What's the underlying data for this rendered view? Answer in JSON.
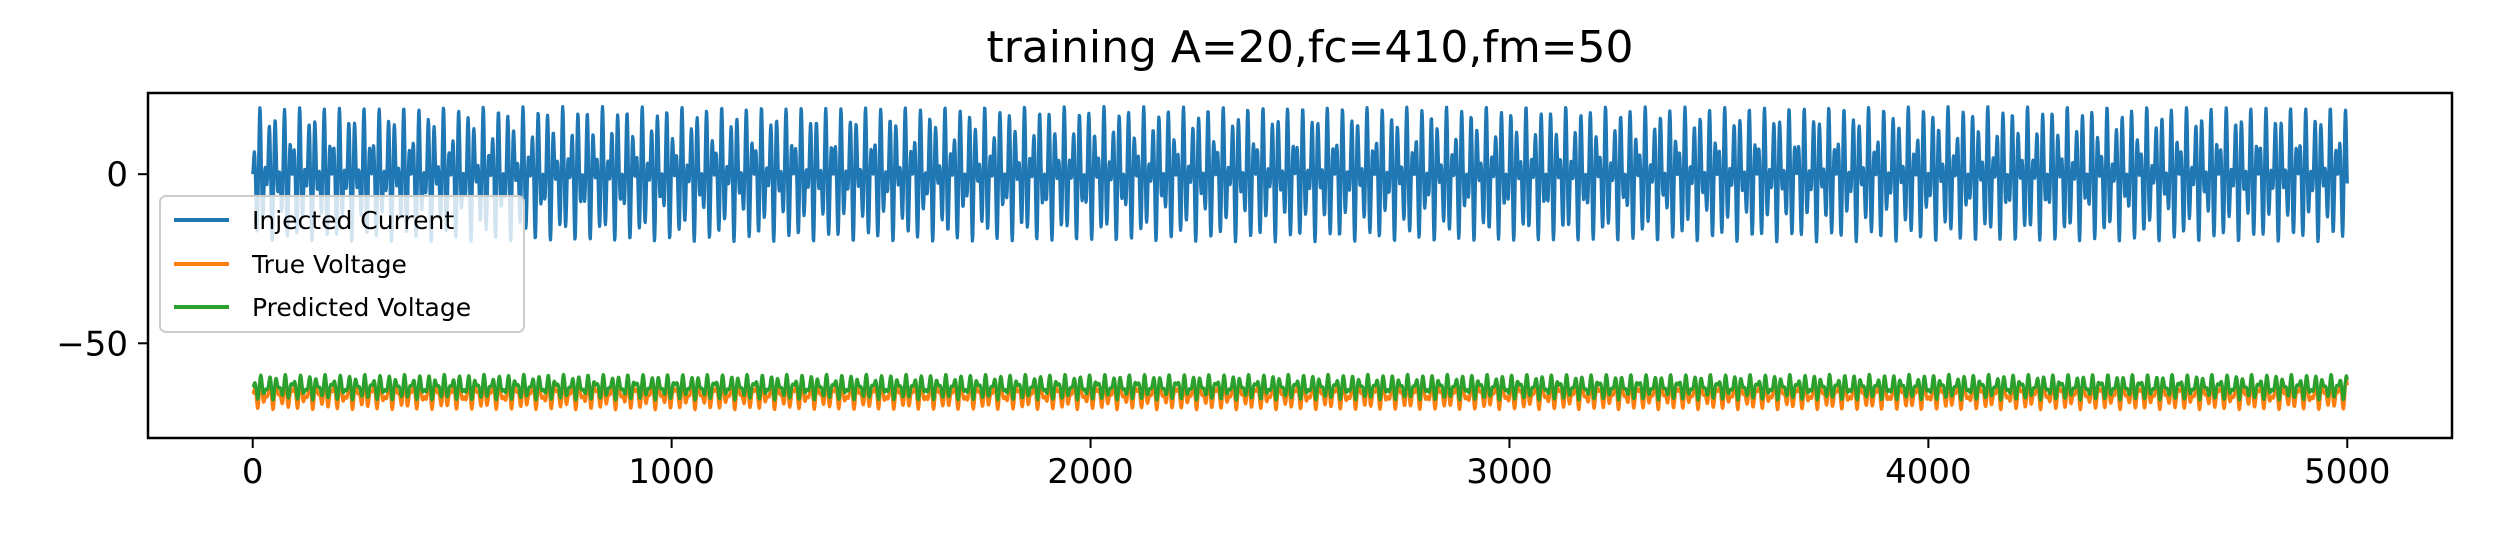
{
  "chart_data": {
    "type": "line",
    "title": "training A=20,fc=410,fm=50",
    "xlabel": "",
    "ylabel": "",
    "xlim": [
      -250,
      5250
    ],
    "ylim": [
      -78,
      24
    ],
    "x_ticks": [
      0,
      1000,
      2000,
      3000,
      4000,
      5000
    ],
    "x_tick_labels": [
      "0",
      "1000",
      "2000",
      "3000",
      "4000",
      "5000"
    ],
    "y_ticks": [
      0,
      -50
    ],
    "y_tick_labels": [
      "0",
      "−50"
    ],
    "grid": false,
    "legend_position": "center-left",
    "series": [
      {
        "name": "Injected Current",
        "color": "#1f77b4",
        "x_range": [
          0,
          5000
        ],
        "n_points": 5001,
        "generator": "A*sin(2*pi*fc*t)*sin(2*pi*fm*t)",
        "amplitude": 20,
        "offset": 0,
        "fc": 410,
        "fm": 50
      },
      {
        "name": "True Voltage",
        "color": "#ff7f0e",
        "x_range": [
          0,
          5000
        ],
        "n_points": 5001,
        "offset": -65,
        "amplitude": 6
      },
      {
        "name": "Predicted Voltage",
        "color": "#2ca02c",
        "x_range": [
          0,
          5000
        ],
        "n_points": 5001,
        "offset": -63,
        "amplitude": 5
      }
    ]
  }
}
